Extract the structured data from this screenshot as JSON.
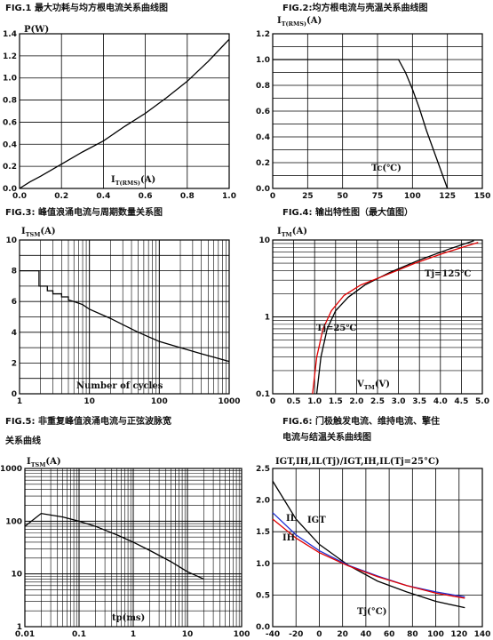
{
  "captions": {
    "fig1": "FIG.1  最大功耗与均方根电流关系曲线图",
    "fig2": "FIG.2:均方根电流与壳温关系曲线图",
    "fig3": "FIG.3:  峰值浪涌电流与周期数量关系图",
    "fig4": "FIG.4:  输出特性图（最大值图）",
    "fig5_line1": "FIG.5:  非重复峰值浪涌电流与正弦波脉宽",
    "fig5_line2": "关系曲线",
    "fig6_line1": "FIG.6:  门极触发电流、维持电流、擎住",
    "fig6_line2": "电流与结温关系曲线图"
  },
  "chart_data": [
    {
      "id": "fig1",
      "type": "line",
      "ylabel": "P(W)",
      "xlabel_main": "I",
      "xlabel_sub": "T(RMS)",
      "xlabel_tail": "(A)",
      "xlim": [
        0,
        1.0
      ],
      "ylim": [
        0,
        1.4
      ],
      "xticks": [
        "0.0",
        "0.2",
        "0.4",
        "0.6",
        "0.8",
        "1.0"
      ],
      "yticks": [
        "0.0",
        "0.2",
        "0.4",
        "0.6",
        "0.8",
        "1.0",
        "1.2",
        "1.4"
      ],
      "series": [
        {
          "x": [
            0,
            0.05,
            0.1,
            0.2,
            0.3,
            0.4,
            0.5,
            0.6,
            0.7,
            0.8,
            0.9,
            1.0
          ],
          "y": [
            0,
            0.06,
            0.11,
            0.22,
            0.33,
            0.43,
            0.56,
            0.68,
            0.82,
            0.97,
            1.15,
            1.35
          ]
        }
      ]
    },
    {
      "id": "fig2",
      "type": "line",
      "ylabel_main": "I",
      "ylabel_sub": "T(RMS)",
      "ylabel_tail": "(A)",
      "xlabel": "Tc(℃)",
      "xlim": [
        0,
        150
      ],
      "ylim": [
        0,
        1.2
      ],
      "xticks": [
        "0",
        "25",
        "50",
        "75",
        "100",
        "125",
        "150"
      ],
      "yticks": [
        "0.0",
        "0.2",
        "0.4",
        "0.6",
        "0.8",
        "1.0",
        "1.2"
      ],
      "series": [
        {
          "x": [
            0,
            90,
            95,
            100,
            105,
            110,
            115,
            120,
            125
          ],
          "y": [
            1.0,
            1.0,
            0.9,
            0.77,
            0.62,
            0.45,
            0.3,
            0.15,
            0
          ]
        }
      ]
    },
    {
      "id": "fig3",
      "type": "line",
      "xscale": "log",
      "ylabel_main": "I",
      "ylabel_sub": "TSM",
      "ylabel_tail": "(A)",
      "xlabel": "Number of cycles",
      "xlim": [
        1,
        1000
      ],
      "ylim": [
        0,
        10
      ],
      "xticks": [
        "1",
        "10",
        "100",
        "1000"
      ],
      "yticks": [
        "0",
        "2",
        "4",
        "6",
        "8",
        "10"
      ],
      "series": [
        {
          "x": [
            1,
            1.9,
            1.9,
            2.5,
            2.5,
            3,
            3,
            4,
            4,
            5,
            5,
            6,
            8,
            10,
            20,
            30,
            50,
            100,
            200,
            400,
            700,
            1000
          ],
          "y": [
            8,
            8,
            7,
            7,
            6.7,
            6.7,
            6.5,
            6.5,
            6.3,
            6.3,
            6.1,
            6.0,
            5.8,
            5.5,
            4.9,
            4.5,
            4.0,
            3.4,
            3.0,
            2.6,
            2.3,
            2.1
          ]
        }
      ]
    },
    {
      "id": "fig4",
      "type": "line",
      "yscale": "log",
      "ylabel_main": "I",
      "ylabel_sub": "TM",
      "ylabel_tail": "(A)",
      "xlabel_main": "V",
      "xlabel_sub": "TM",
      "xlabel_tail": "(V)",
      "xlim": [
        0,
        5.0
      ],
      "ylim": [
        0.1,
        10
      ],
      "xticks": [
        "0",
        "0.5",
        "1.0",
        "1.5",
        "2.0",
        "2.5",
        "3.0",
        "3.5",
        "4.0",
        "4.5",
        "5.0"
      ],
      "yticks": [
        "0.1",
        "1",
        "10"
      ],
      "annotations": [
        "Tj=125℃",
        "Tj=25℃"
      ],
      "series": [
        {
          "name": "Tj=25℃",
          "color": "#000000",
          "x": [
            1.05,
            1.15,
            1.3,
            1.5,
            1.8,
            2.2,
            2.8,
            3.5,
            4.2,
            4.8
          ],
          "y": [
            0.1,
            0.3,
            0.7,
            1.2,
            1.8,
            2.6,
            3.8,
            5.5,
            7.6,
            9.8
          ]
        },
        {
          "name": "Tj=125℃",
          "color": "#e00000",
          "x": [
            0.95,
            1.05,
            1.2,
            1.4,
            1.7,
            2.1,
            2.7,
            3.4,
            4.1,
            4.9
          ],
          "y": [
            0.1,
            0.3,
            0.7,
            1.2,
            1.9,
            2.6,
            3.5,
            5.0,
            6.8,
            9.3
          ]
        }
      ]
    },
    {
      "id": "fig5",
      "type": "line",
      "xscale": "log",
      "yscale": "log",
      "ylabel_main": "I",
      "ylabel_sub": "TSM",
      "ylabel_tail": "(A)",
      "xlabel": "tp(ms)",
      "xlim": [
        0.01,
        100
      ],
      "ylim": [
        1,
        1000
      ],
      "xticks": [
        "0.01",
        "0.1",
        "1",
        "10",
        "100"
      ],
      "yticks": [
        "1",
        "10",
        "100",
        "1000"
      ],
      "series": [
        {
          "x": [
            0.01,
            0.02,
            0.05,
            0.1,
            0.2,
            0.5,
            1,
            2,
            5,
            10,
            20
          ],
          "y": [
            80,
            140,
            120,
            100,
            80,
            55,
            40,
            28,
            17,
            11,
            8
          ]
        }
      ]
    },
    {
      "id": "fig6",
      "type": "line",
      "ylabel": "IGT,IH,IL(Tj)/IGT,IH,IL(Tj=25°C)",
      "xlabel": "Tj(°C)",
      "xlim": [
        -40,
        140
      ],
      "ylim": [
        0,
        2.5
      ],
      "xticks": [
        "-40",
        "-20",
        "0",
        "20",
        "40",
        "60",
        "80",
        "100",
        "120",
        "140"
      ],
      "yticks": [
        "0.0",
        "0.5",
        "1.0",
        "1.5",
        "2.0",
        "2.5"
      ],
      "annotations": [
        "IL",
        "IGT",
        "IH"
      ],
      "series": [
        {
          "name": "IGT",
          "color": "#000000",
          "x": [
            -40,
            -20,
            0,
            25,
            50,
            75,
            100,
            125
          ],
          "y": [
            2.3,
            1.7,
            1.3,
            0.97,
            0.72,
            0.55,
            0.4,
            0.3
          ]
        },
        {
          "name": "IL",
          "color": "#2030d0",
          "x": [
            -40,
            -20,
            0,
            25,
            50,
            75,
            100,
            125
          ],
          "y": [
            1.8,
            1.45,
            1.2,
            0.97,
            0.8,
            0.65,
            0.55,
            0.47
          ]
        },
        {
          "name": "IH",
          "color": "#e00000",
          "x": [
            -40,
            -20,
            0,
            25,
            50,
            75,
            100,
            125
          ],
          "y": [
            1.7,
            1.4,
            1.17,
            0.96,
            0.79,
            0.65,
            0.53,
            0.45
          ]
        }
      ]
    }
  ]
}
